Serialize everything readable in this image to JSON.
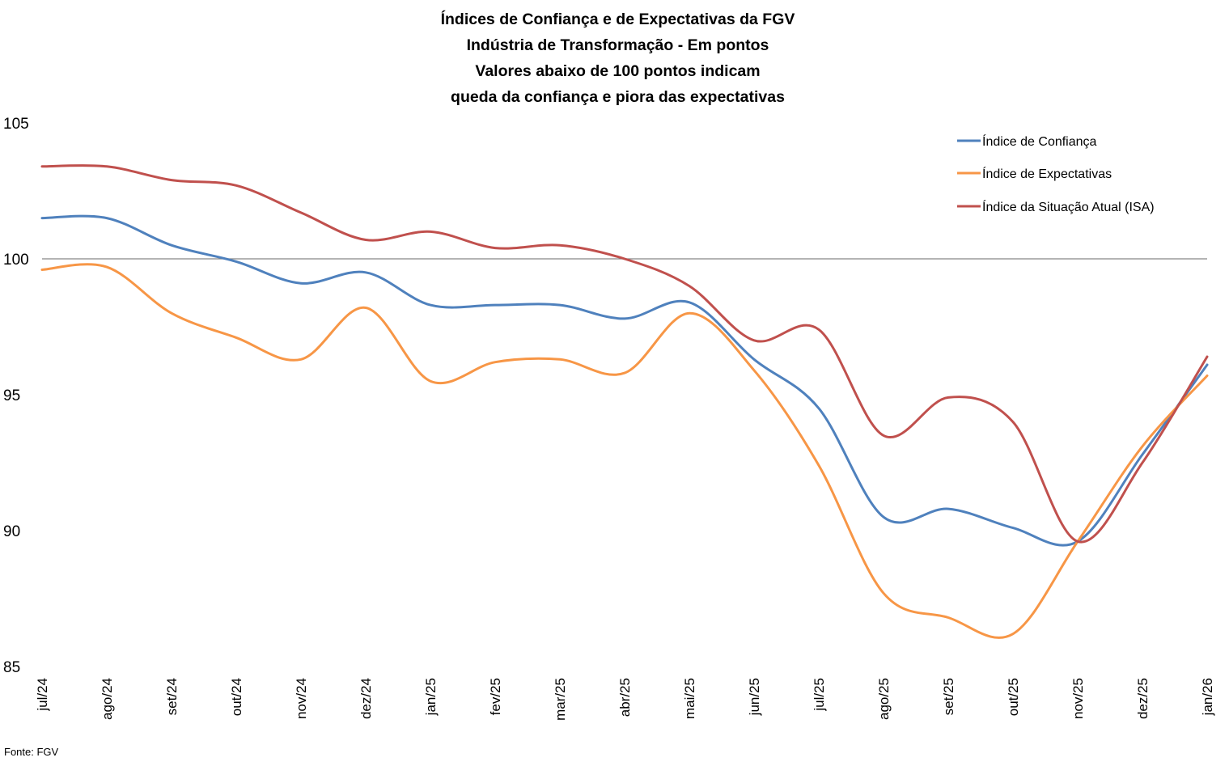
{
  "chart_data": {
    "type": "line",
    "title": [
      "Índices de Confiança e de Expectativas da FGV",
      "Indústria de Transformação - Em pontos",
      "Valores abaixo de 100 pontos indicam",
      "queda da confiança e piora das expectativas"
    ],
    "xlabel": "",
    "ylabel": "",
    "categories": [
      "jul/24",
      "ago/24",
      "set/24",
      "out/24",
      "nov/24",
      "dez/24",
      "jan/25",
      "fev/25",
      "mar/25",
      "abr/25",
      "mai/25",
      "jun/25",
      "jul/25",
      "ago/25",
      "set/25",
      "out/25",
      "nov/25",
      "dez/25",
      "jan/26"
    ],
    "ylim": [
      85,
      105
    ],
    "yticks": [
      "85",
      "90",
      "95",
      "100",
      "105"
    ],
    "yticks_values": [
      85,
      90,
      95,
      100,
      105
    ],
    "reference_line": 100,
    "grid": false,
    "smooth": true,
    "legend_position": "top-right",
    "series": [
      {
        "name": "Índice de Confiança",
        "color": "#4F81BD",
        "values": [
          101.5,
          101.5,
          100.5,
          99.9,
          99.1,
          99.5,
          98.3,
          98.3,
          98.3,
          97.8,
          98.4,
          96.3,
          94.5,
          90.5,
          90.8,
          90.1,
          89.6,
          92.8,
          96.1
        ]
      },
      {
        "name": "Índice de Expectativas",
        "color": "#F79646",
        "values": [
          99.6,
          99.7,
          98.0,
          97.1,
          96.3,
          98.2,
          95.5,
          96.2,
          96.3,
          95.8,
          98.0,
          95.9,
          92.4,
          87.7,
          86.8,
          86.2,
          89.6,
          93.1,
          95.7
        ]
      },
      {
        "name": "Índice da Situação Atual (ISA)",
        "color": "#C0504D",
        "values": [
          103.4,
          103.4,
          102.9,
          102.7,
          101.7,
          100.7,
          101.0,
          100.4,
          100.5,
          100.0,
          99.0,
          97.0,
          97.4,
          93.5,
          94.9,
          94.0,
          89.6,
          92.5,
          96.4
        ]
      }
    ],
    "source": "Fonte: FGV"
  }
}
